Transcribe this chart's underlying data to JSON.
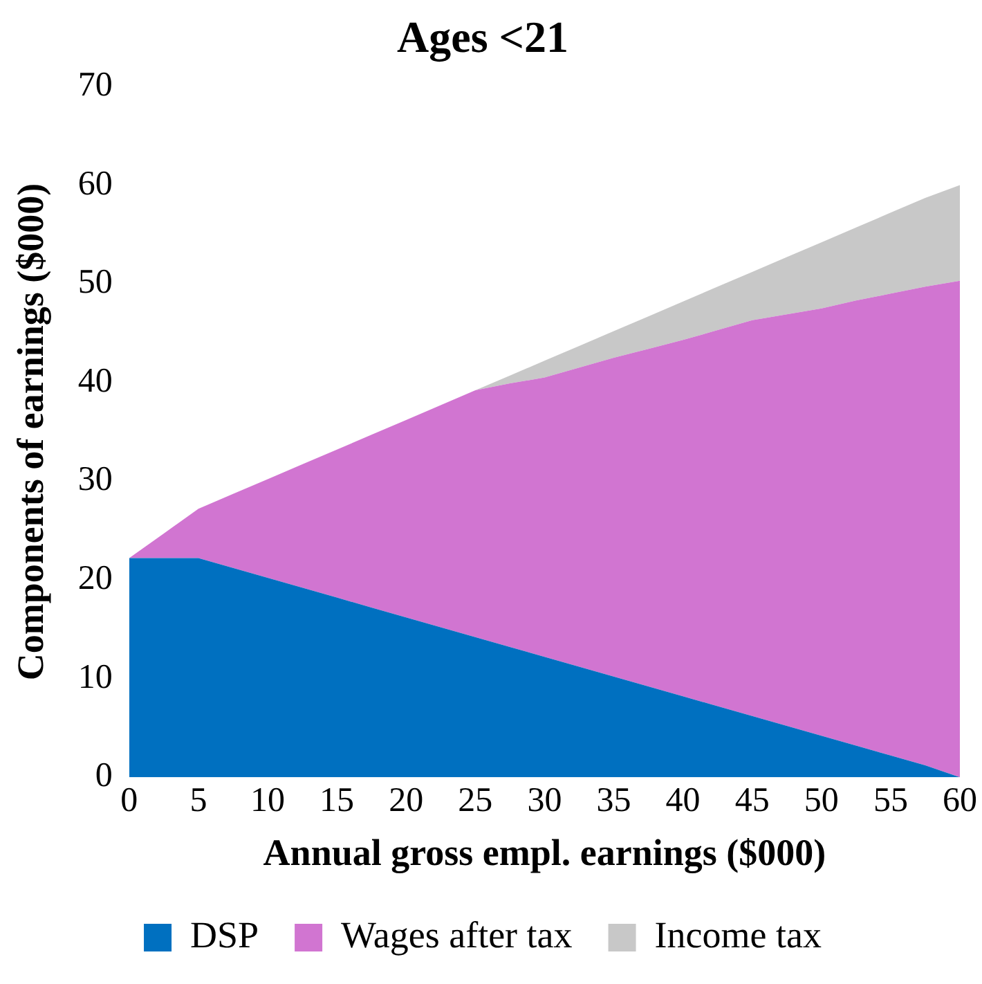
{
  "chart_data": {
    "type": "area",
    "title": "Ages <21",
    "xlabel": "Annual gross empl. earnings ($000)",
    "ylabel": "Components of earnings ($000)",
    "stacked": true,
    "legend": "bottom",
    "grid": false,
    "x": [
      0,
      2.5,
      5,
      7.5,
      10,
      12.5,
      15,
      17.5,
      20,
      22.5,
      25,
      27.5,
      30,
      32.5,
      35,
      37.5,
      40,
      42.5,
      45,
      47.5,
      50,
      52.5,
      55,
      57.5,
      60
    ],
    "series": [
      {
        "name": "DSP",
        "color": "#0070c0",
        "values": [
          22.2,
          22.2,
          22.2,
          21.2,
          20.2,
          19.2,
          18.2,
          17.2,
          16.2,
          15.2,
          14.2,
          13.2,
          12.2,
          11.2,
          10.2,
          9.2,
          8.2,
          7.2,
          6.2,
          5.2,
          4.2,
          3.2,
          2.2,
          1.2,
          0
        ]
      },
      {
        "name": "Wages after tax",
        "color": "#d175d1",
        "values": [
          0,
          2.5,
          5,
          7.5,
          10,
          12.5,
          15,
          17.5,
          20,
          22.5,
          25,
          26.7,
          28.3,
          30.3,
          32.3,
          34.2,
          36.1,
          38.1,
          40.1,
          41.7,
          43.3,
          45.1,
          46.8,
          48.5,
          50.3
        ]
      },
      {
        "name": "Income tax",
        "color": "#c8c8c8",
        "values": [
          null,
          null,
          null,
          null,
          null,
          null,
          null,
          null,
          null,
          null,
          0,
          0.8,
          1.7,
          2.2,
          2.7,
          3.3,
          3.9,
          4.4,
          4.9,
          5.8,
          6.7,
          7.4,
          8.2,
          9,
          9.7
        ]
      }
    ],
    "xlim": [
      0,
      60
    ],
    "xticks": [
      0,
      5,
      10,
      15,
      20,
      25,
      30,
      35,
      40,
      45,
      50,
      55,
      60
    ],
    "ylim": [
      0,
      70
    ],
    "yticks": [
      0,
      10,
      20,
      30,
      40,
      50,
      60,
      70
    ]
  }
}
